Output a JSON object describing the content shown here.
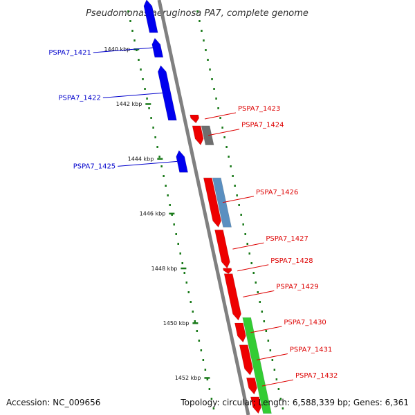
{
  "title": "Pseudomonas aeruginosa PA7, complete genome",
  "footer": {
    "accession": "Accession: NC_009656",
    "summary": "Topology: circular; Length: 6,588,339 bp; Genes: 6,361"
  },
  "colors": {
    "forward_label": "#0000cc",
    "reverse_label": "#dd0000",
    "backbone": "#808080",
    "tick": "#1a7a1a",
    "blue_gene": "#0000ee",
    "red_gene": "#ee0000",
    "gray_gene": "#6e6e6e",
    "steel_gene": "#5a8fc0",
    "green_gene": "#33cc33"
  },
  "scale": {
    "unit": "kbp",
    "ticks": [
      {
        "value": 1440,
        "label": "1440 kbp"
      },
      {
        "value": 1442,
        "label": "1442 kbp"
      },
      {
        "value": 1444,
        "label": "1444 kbp"
      },
      {
        "value": 1446,
        "label": "1446 kbp"
      },
      {
        "value": 1448,
        "label": "1448 kbp"
      },
      {
        "value": 1450,
        "label": "1450 kbp"
      },
      {
        "value": 1452,
        "label": "1452 kbp"
      }
    ]
  },
  "genes": [
    {
      "label": "",
      "strand": "forward",
      "color": "blue_gene",
      "start": 1438.2,
      "end": 1439.4
    },
    {
      "label": "PSPA7_1421",
      "strand": "forward",
      "color": "blue_gene",
      "start": 1439.6,
      "end": 1440.3
    },
    {
      "label": "PSPA7_1422",
      "strand": "forward",
      "color": "blue_gene",
      "start": 1440.6,
      "end": 1442.6
    },
    {
      "label": "PSPA7_1423",
      "strand": "reverse",
      "color": "red_gene",
      "start": 1442.4,
      "end": 1442.7
    },
    {
      "label": "PSPA7_1424",
      "strand": "reverse",
      "color": "red_gene",
      "start": 1442.8,
      "end": 1443.5
    },
    {
      "label": "",
      "strand": "reverse",
      "color": "gray_gene",
      "start": 1442.8,
      "end": 1443.5,
      "lane": "outer"
    },
    {
      "label": "PSPA7_1425",
      "strand": "forward",
      "color": "blue_gene",
      "start": 1443.7,
      "end": 1444.5
    },
    {
      "label": "PSPA7_1426",
      "strand": "reverse",
      "color": "red_gene",
      "start": 1444.7,
      "end": 1446.5
    },
    {
      "label": "",
      "strand": "reverse",
      "color": "steel_gene",
      "start": 1444.7,
      "end": 1446.5,
      "lane": "outer"
    },
    {
      "label": "PSPA7_1427",
      "strand": "reverse",
      "color": "red_gene",
      "start": 1446.6,
      "end": 1448.0
    },
    {
      "label": "PSPA7_1428",
      "strand": "reverse",
      "color": "red_gene",
      "start": 1448.0,
      "end": 1448.2
    },
    {
      "label": "PSPA7_1429",
      "strand": "reverse",
      "color": "red_gene",
      "start": 1448.2,
      "end": 1449.9
    },
    {
      "label": "PSPA7_1430",
      "strand": "reverse",
      "color": "red_gene",
      "start": 1450.0,
      "end": 1450.7
    },
    {
      "label": "PSPA7_1431",
      "strand": "reverse",
      "color": "red_gene",
      "start": 1450.8,
      "end": 1451.9
    },
    {
      "label": "PSPA7_1432",
      "strand": "reverse",
      "color": "red_gene",
      "start": 1452.0,
      "end": 1452.6
    },
    {
      "label": "",
      "strand": "reverse",
      "color": "red_gene",
      "start": 1452.7,
      "end": 1453.3
    },
    {
      "label": "",
      "strand": "reverse",
      "color": "green_gene",
      "start": 1449.8,
      "end": 1453.3,
      "lane": "outer"
    }
  ]
}
